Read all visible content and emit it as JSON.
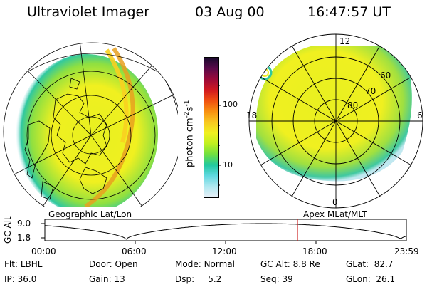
{
  "header": {
    "instrument": "Ultraviolet Imager",
    "date": "03 Aug 00",
    "time": "16:47:57 UT"
  },
  "left_map": {
    "caption": "Geographic Lat/Lon"
  },
  "right_map": {
    "caption": "Apex MLat/MLT",
    "lat_labels": [
      "60",
      "70",
      "80"
    ],
    "mlt_labels": [
      "12",
      "18",
      "6",
      "0"
    ]
  },
  "colorbar": {
    "unit_base": "photon cm",
    "unit_exp1": "-2",
    "unit_mid": "s",
    "unit_exp2": "-1",
    "ticks": [
      "100",
      "10"
    ],
    "colors": [
      "#1a0a2e",
      "#5a0a4a",
      "#9a0a3a",
      "#d01820",
      "#f05010",
      "#f89010",
      "#f8c820",
      "#f0f020",
      "#c0f020",
      "#70e040",
      "#20c8a0",
      "#60d8e0",
      "#b0e8f0",
      "#e8f0f8"
    ]
  },
  "timeline": {
    "y_axis_label": "GC Alt",
    "y_ticks": [
      "9.0",
      "1.8"
    ],
    "x_ticks": [
      "00:00",
      "06:00",
      "12:00",
      "18:00",
      "23:59"
    ],
    "current_time_fraction": 0.699
  },
  "info_rows": [
    [
      {
        "label": "Flt:",
        "value": "LBHL"
      },
      {
        "label": "Door:",
        "value": "Open"
      },
      {
        "label": "Mode:",
        "value": "Normal"
      },
      {
        "label": "GC Alt:",
        "value": "8.8 Re"
      },
      {
        "label": "GLat:",
        "value": "82.7"
      }
    ],
    [
      {
        "label": "IP:",
        "value": "36.0"
      },
      {
        "label": "Gain:",
        "value": "13"
      },
      {
        "label": "Dsp:",
        "value": "5.2"
      },
      {
        "label": "Seq:",
        "value": "39"
      },
      {
        "label": "GLon:",
        "value": "26.1"
      }
    ]
  ],
  "colors": {
    "timeline_marker": "#cc2020",
    "aurora_yellow": "#f0f020",
    "aurora_green": "#70e040",
    "aurora_cyan": "#20c8a0"
  }
}
